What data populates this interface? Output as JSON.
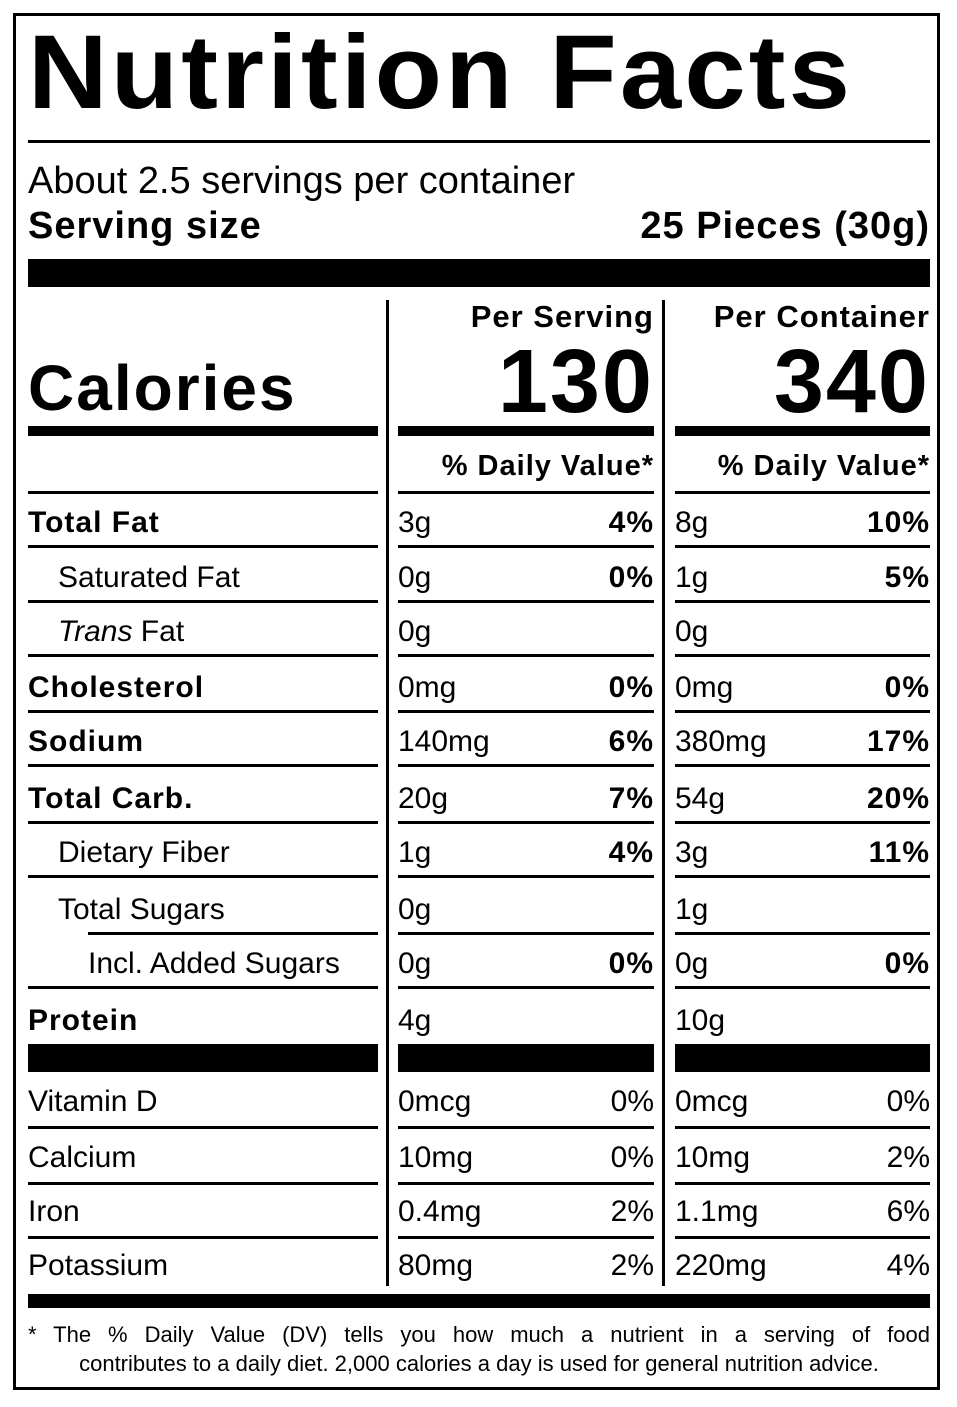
{
  "title": "Nutrition Facts",
  "servings_per_container": "About 2.5 servings per container",
  "serving_size_label": "Serving size",
  "serving_size_value": "25 Pieces (30g)",
  "calories_label": "Calories",
  "per_serving_header": "Per Serving",
  "per_container_header": "Per Container",
  "calories_per_serving": "130",
  "calories_per_container": "340",
  "dv_header": "% Daily Value*",
  "nutrients": [
    {
      "name": "Total Fat",
      "bold": true,
      "serving_amount": "3g",
      "serving_dv": "4%",
      "container_amount": "8g",
      "container_dv": "10%"
    },
    {
      "name": "Saturated Fat",
      "bold": false,
      "serving_amount": "0g",
      "serving_dv": "0%",
      "container_amount": "1g",
      "container_dv": "5%"
    },
    {
      "name_italic": "Trans",
      "name_rest": " Fat",
      "bold": false,
      "serving_amount": "0g",
      "serving_dv": "",
      "container_amount": "0g",
      "container_dv": ""
    },
    {
      "name": "Cholesterol",
      "bold": true,
      "serving_amount": "0mg",
      "serving_dv": "0%",
      "container_amount": "0mg",
      "container_dv": "0%"
    },
    {
      "name": "Sodium",
      "bold": true,
      "serving_amount": "140mg",
      "serving_dv": "6%",
      "container_amount": "380mg",
      "container_dv": "17%"
    },
    {
      "name": "Total Carb.",
      "bold": true,
      "serving_amount": "20g",
      "serving_dv": "7%",
      "container_amount": "54g",
      "container_dv": "20%"
    },
    {
      "name": "Dietary Fiber",
      "bold": false,
      "serving_amount": "1g",
      "serving_dv": "4%",
      "container_amount": "3g",
      "container_dv": "11%"
    },
    {
      "name": "Total Sugars",
      "bold": false,
      "serving_amount": "0g",
      "serving_dv": "",
      "container_amount": "1g",
      "container_dv": ""
    },
    {
      "name": "Incl. Added Sugars",
      "bold": false,
      "serving_amount": "0g",
      "serving_dv": "0%",
      "container_amount": "0g",
      "container_dv": "0%"
    },
    {
      "name": "Protein",
      "bold": true,
      "serving_amount": "4g",
      "serving_dv": "",
      "container_amount": "10g",
      "container_dv": ""
    }
  ],
  "micronutrients": [
    {
      "name": "Vitamin D",
      "serving_amount": "0mcg",
      "serving_dv": "0%",
      "container_amount": "0mcg",
      "container_dv": "0%"
    },
    {
      "name": "Calcium",
      "serving_amount": "10mg",
      "serving_dv": "0%",
      "container_amount": "10mg",
      "container_dv": "2%"
    },
    {
      "name": "Iron",
      "serving_amount": "0.4mg",
      "serving_dv": "2%",
      "container_amount": "1.1mg",
      "container_dv": "6%"
    },
    {
      "name": "Potassium",
      "serving_amount": "80mg",
      "serving_dv": "2%",
      "container_amount": "220mg",
      "container_dv": "4%"
    }
  ],
  "footnote_line1": "* The % Daily Value (DV) tells you how much a nutrient in a serving of food",
  "footnote_line2": "contributes to a daily diet. 2,000 calories a day is used for general nutrition advice."
}
